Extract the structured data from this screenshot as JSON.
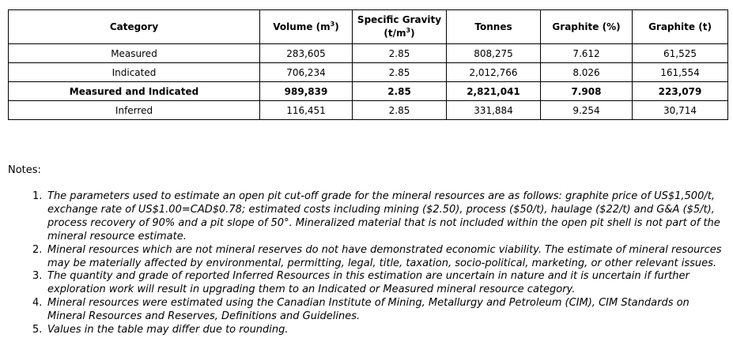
{
  "table": {
    "headers": {
      "category": "Category",
      "volume": "Volume (m",
      "volume_sup": "3",
      "volume_close": ")",
      "sg_line1": "Specific Gravity",
      "sg_line2": "(t/m",
      "sg_sup": "3",
      "sg_close": ")",
      "tonnes": "Tonnes",
      "graphite_pct": "Graphite (%)",
      "graphite_t": "Graphite (t)"
    },
    "rows": [
      {
        "category": "Measured",
        "volume": "283,605",
        "sg": "2.85",
        "tonnes": "808,275",
        "graphite_pct": "7.612",
        "graphite_t": "61,525"
      },
      {
        "category": "Indicated",
        "volume": "706,234",
        "sg": "2.85",
        "tonnes": "2,012,766",
        "graphite_pct": "8.026",
        "graphite_t": "161,554"
      },
      {
        "category": "Measured and Indicated",
        "volume": "989,839",
        "sg": "2.85",
        "tonnes": "2,821,041",
        "graphite_pct": "7.908",
        "graphite_t": "223,079"
      },
      {
        "category": "Inferred",
        "volume": "116,451",
        "sg": "2.85",
        "tonnes": "331,884",
        "graphite_pct": "9.254",
        "graphite_t": "30,714"
      }
    ]
  },
  "notes": {
    "label": "Notes:",
    "items": [
      {
        "num": "1.",
        "text": "The parameters used to estimate an open pit cut-off grade for the mineral resources are as follows: graphite price of US$1,500/t, exchange rate of US$1.00=CAD$0.78; estimated costs including mining ($2.50), process ($50/t), haulage ($22/t) and G&A ($5/t), process recovery of 90% and a pit slope of 50°. Mineralized material that is not included within the open pit shell is not part of the mineral resource estimate."
      },
      {
        "num": "2.",
        "text": "Mineral resources which are not mineral reserves do not have demonstrated economic viability. The estimate of mineral resources may be materially affected by environmental, permitting, legal, title, taxation, socio-political, marketing, or other relevant issues."
      },
      {
        "num": "3.",
        "text": "The quantity and grade of reported Inferred Resources in this estimation are uncertain in nature and it is uncertain if further exploration work will result in upgrading them to an Indicated or Measured mineral resource category."
      },
      {
        "num": "4.",
        "text": "Mineral resources were estimated using the Canadian Institute of Mining, Metallurgy and Petroleum (CIM), CIM Standards on Mineral Resources and Reserves, Definitions and Guidelines."
      },
      {
        "num": "5.",
        "text": "Values in the table may differ due to rounding."
      }
    ]
  }
}
